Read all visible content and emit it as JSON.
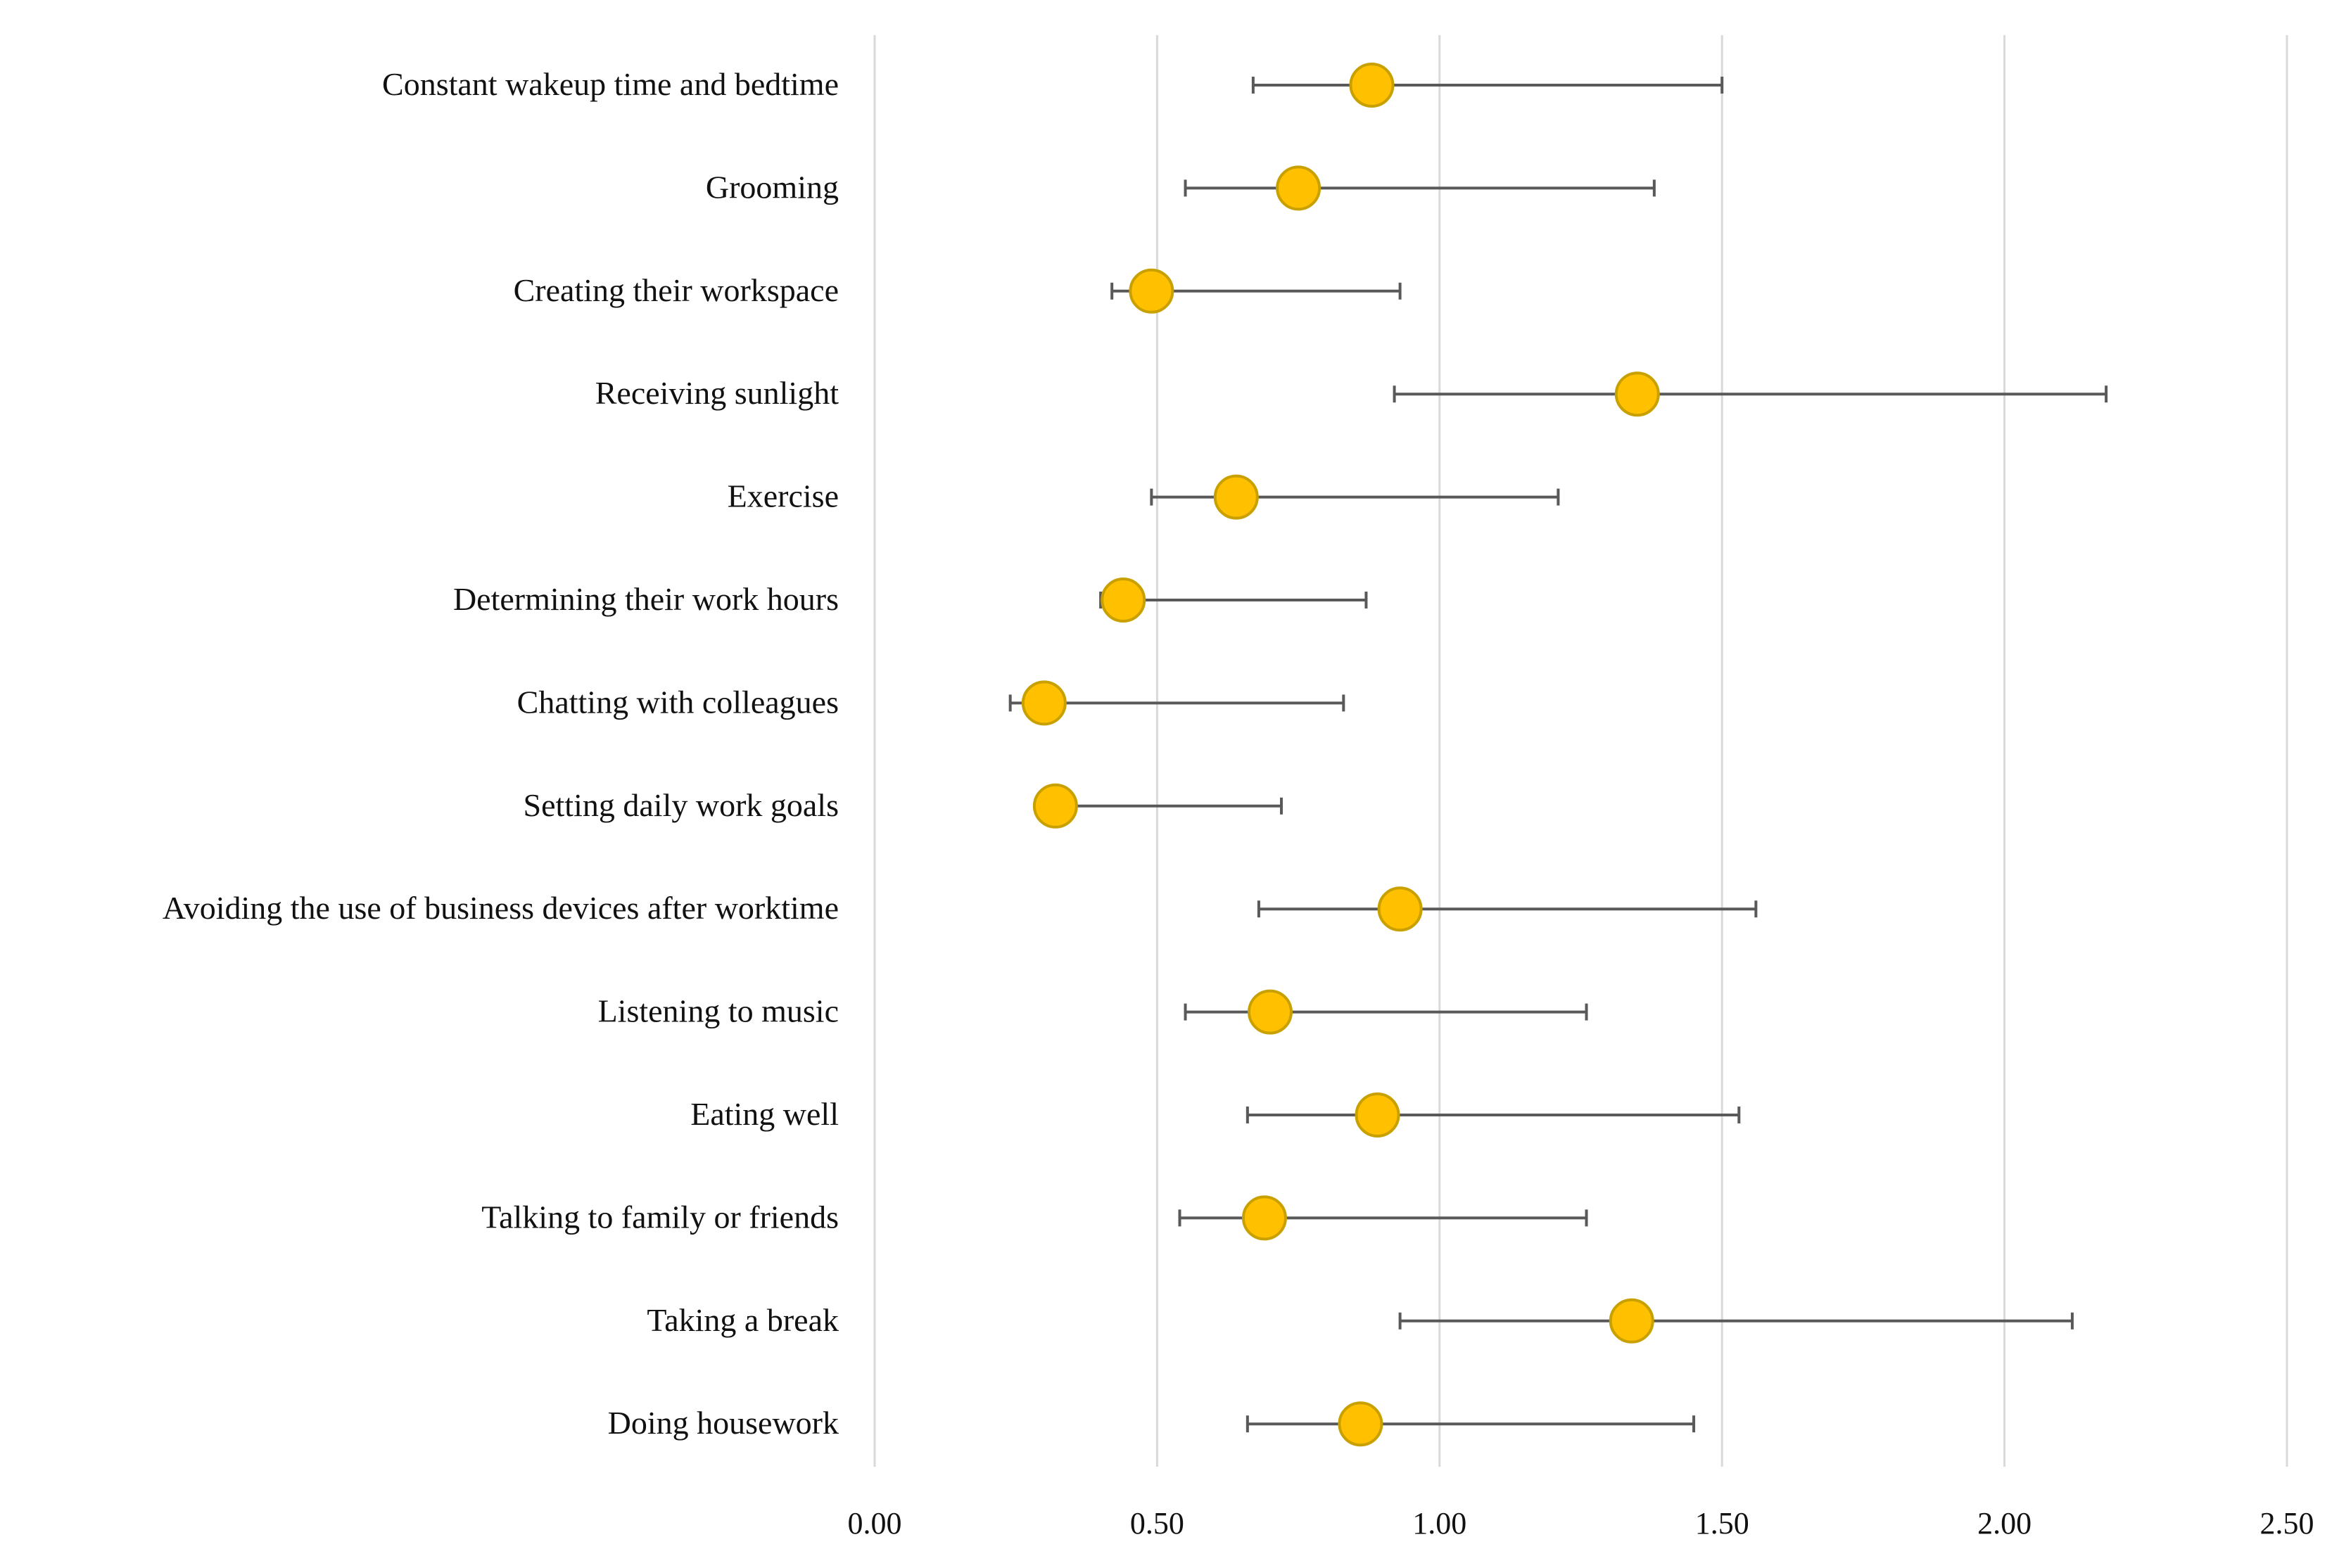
{
  "chart_data": {
    "type": "scatter",
    "title": "",
    "xlabel": "",
    "ylabel": "",
    "xlim": [
      0,
      2.5
    ],
    "x_ticks": [
      "0.00",
      "0.50",
      "1.00",
      "1.50",
      "2.00",
      "2.50"
    ],
    "grid": true,
    "colors": {
      "point_fill": "#ffc000",
      "point_stroke": "#c8a000",
      "error_bar": "#595959",
      "grid": "#d9d9d9"
    },
    "categories": [
      "Constant wakeup time and bedtime",
      "Grooming",
      "Creating their workspace",
      "Receiving sunlight",
      "Exercise",
      "Determining their work hours",
      "Chatting with colleagues",
      "Setting daily work goals",
      "Avoiding the use of business devices after worktime",
      "Listening to music",
      "Eating well",
      "Talking to family or friends",
      "Taking a break",
      "Doing housework"
    ],
    "values": [
      0.88,
      0.75,
      0.49,
      1.35,
      0.64,
      0.44,
      0.3,
      0.32,
      0.93,
      0.7,
      0.89,
      0.69,
      1.34,
      0.86
    ],
    "lower": [
      0.67,
      0.55,
      0.42,
      0.92,
      0.49,
      0.4,
      0.24,
      0.3,
      0.68,
      0.55,
      0.66,
      0.54,
      0.93,
      0.66
    ],
    "upper": [
      1.5,
      1.38,
      0.93,
      2.18,
      1.21,
      0.87,
      0.83,
      0.72,
      1.56,
      1.26,
      1.53,
      1.26,
      2.12,
      1.45
    ]
  }
}
